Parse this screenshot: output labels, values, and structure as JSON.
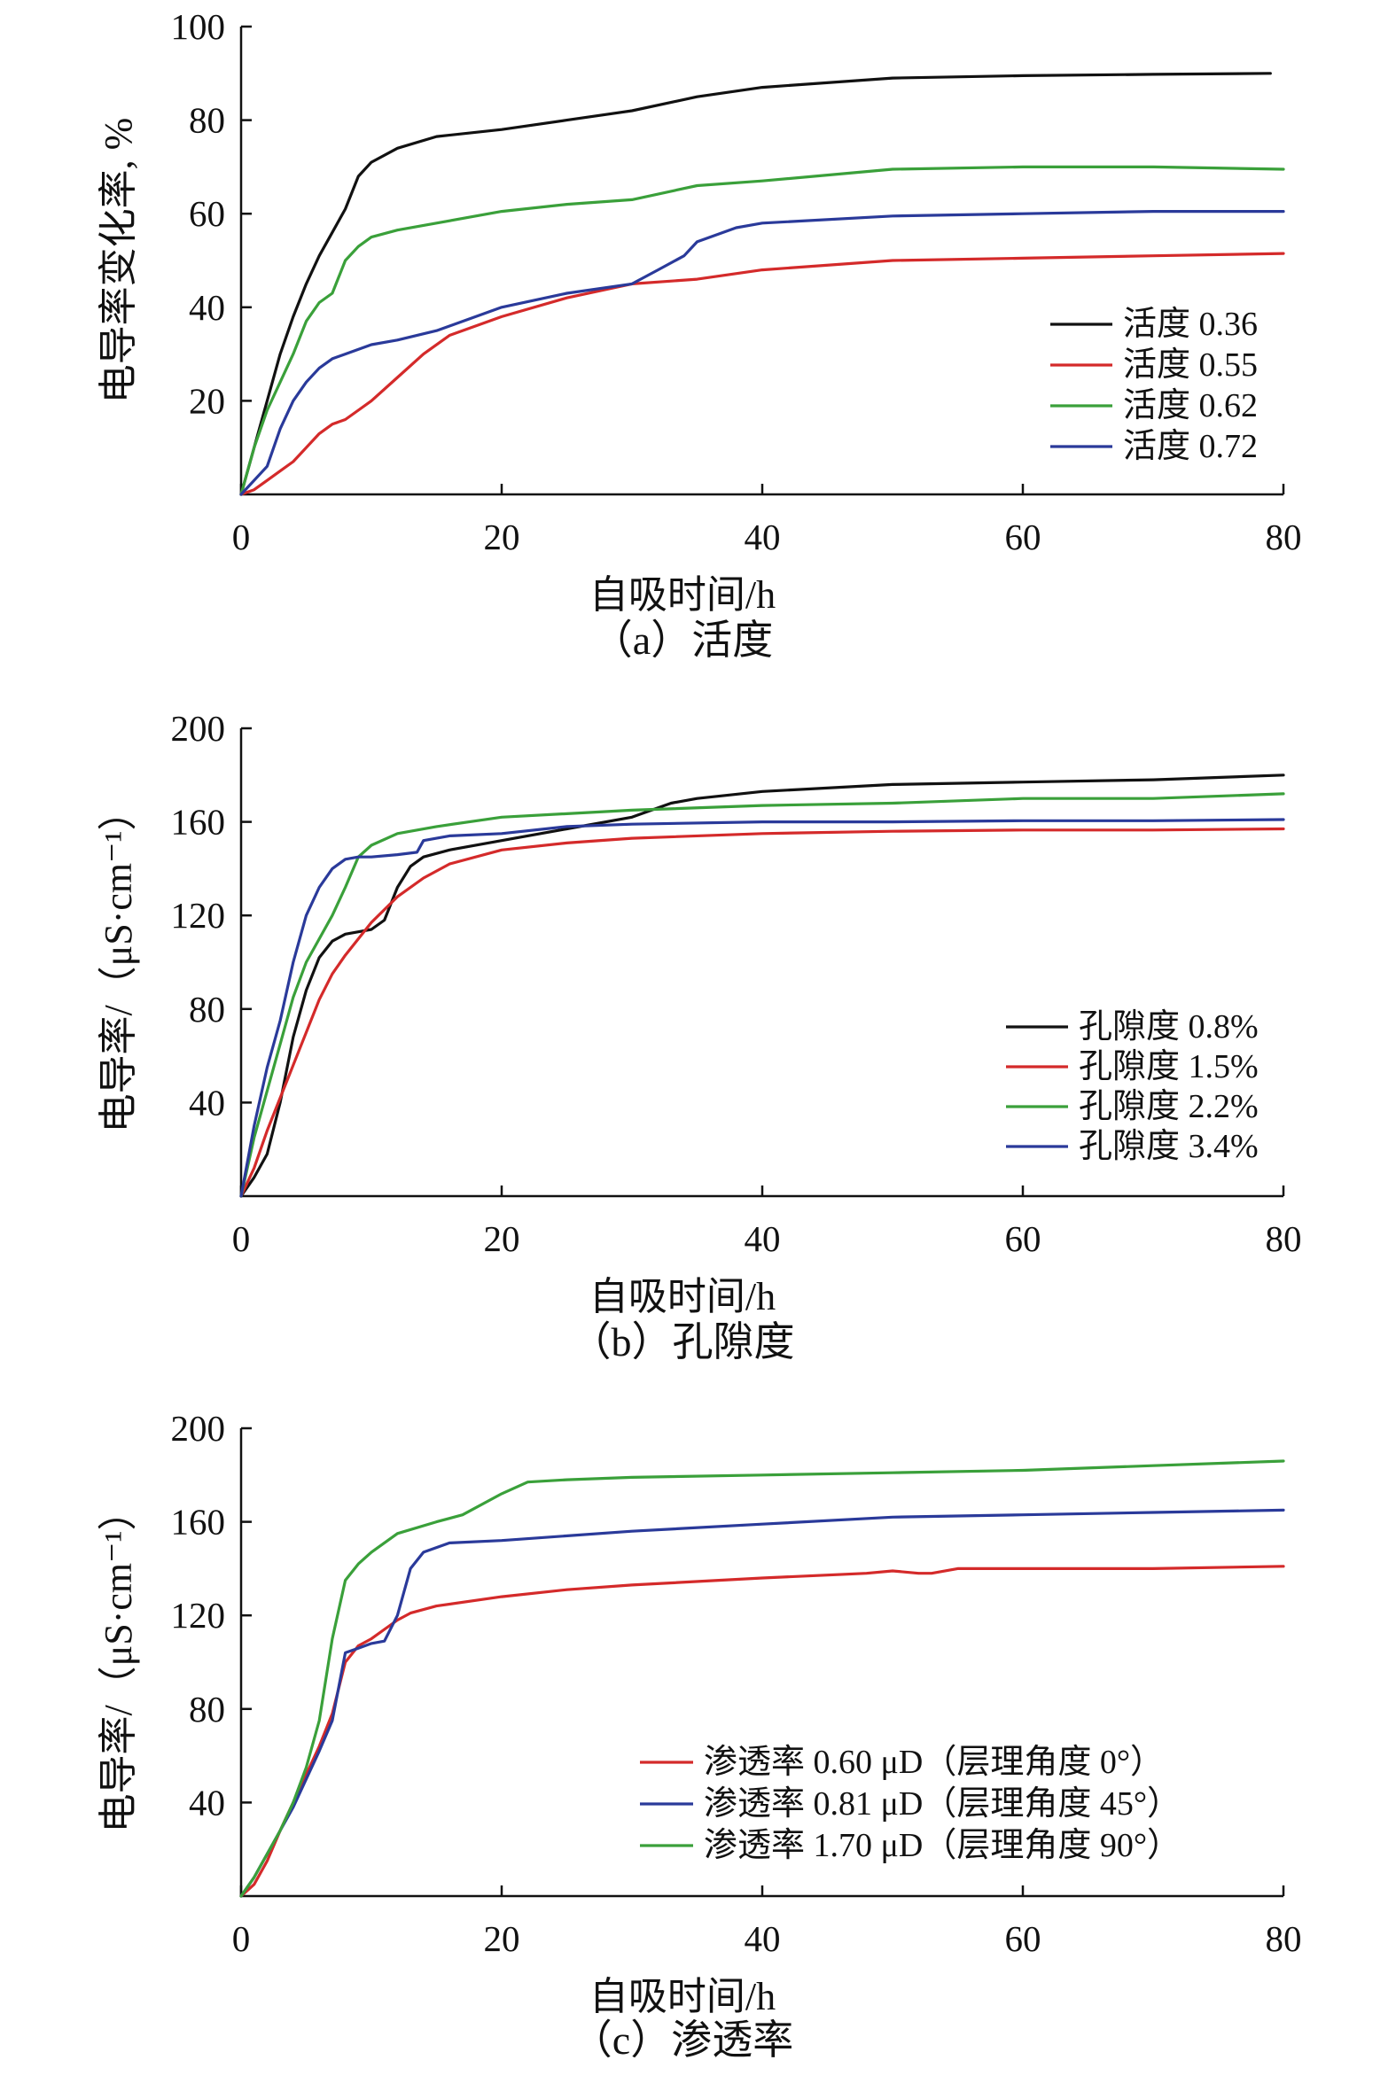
{
  "chart_data": [
    {
      "type": "line",
      "caption": "（a）活度",
      "xlabel": "自吸时间/h",
      "ylabel": "电导率变化率, %",
      "xlim": [
        0,
        80
      ],
      "ylim": [
        0,
        100
      ],
      "xticks": [
        "0",
        "20",
        "40",
        "60",
        "80"
      ],
      "yticks": [
        "20",
        "40",
        "60",
        "80",
        "100"
      ],
      "legend_position": "right",
      "series": [
        {
          "name": "活度 0.36",
          "color": "#111111",
          "x": [
            0,
            1,
            2,
            3,
            4,
            5,
            6,
            7,
            8,
            9,
            10,
            12,
            15,
            20,
            25,
            30,
            35,
            40,
            50,
            60,
            70,
            79
          ],
          "y": [
            0,
            10,
            20,
            30,
            38,
            45,
            51,
            56,
            61,
            68,
            71,
            74,
            76.5,
            78,
            80,
            82,
            85,
            87,
            89,
            89.5,
            89.8,
            90
          ]
        },
        {
          "name": "活度 0.55",
          "color": "#d42a2a",
          "x": [
            0,
            1,
            2,
            3,
            4,
            5,
            6,
            7,
            8,
            9,
            10,
            12,
            14,
            16,
            20,
            25,
            30,
            35,
            40,
            50,
            60,
            70,
            80
          ],
          "y": [
            0,
            1,
            3,
            5,
            7,
            10,
            13,
            15,
            16,
            18,
            20,
            25,
            30,
            34,
            38,
            42,
            45,
            46,
            48,
            50,
            50.5,
            51,
            51.5
          ]
        },
        {
          "name": "活度 0.62",
          "color": "#3aa03a",
          "x": [
            0,
            1,
            2,
            3,
            4,
            5,
            6,
            7,
            8,
            9,
            10,
            12,
            15,
            20,
            25,
            30,
            35,
            40,
            50,
            60,
            70,
            80
          ],
          "y": [
            0,
            10,
            18,
            24,
            30,
            37,
            41,
            43,
            50,
            53,
            55,
            56.5,
            58,
            60.5,
            62,
            63,
            66,
            67,
            69.5,
            70,
            70,
            69.5
          ]
        },
        {
          "name": "活度 0.72",
          "color": "#2a3a9a",
          "x": [
            0,
            1,
            2,
            3,
            4,
            5,
            6,
            7,
            8,
            10,
            12,
            15,
            18,
            20,
            25,
            30,
            32,
            34,
            35,
            38,
            40,
            50,
            60,
            70,
            80
          ],
          "y": [
            0,
            3,
            6,
            14,
            20,
            24,
            27,
            29,
            30,
            32,
            33,
            35,
            38,
            40,
            43,
            45,
            48,
            51,
            54,
            57,
            58,
            59.5,
            60,
            60.5,
            60.5
          ]
        }
      ]
    },
    {
      "type": "line",
      "caption": "（b）孔隙度",
      "xlabel": "自吸时间/h",
      "ylabel": "电导率/（μS·cm⁻¹）",
      "xlim": [
        0,
        80
      ],
      "ylim": [
        0,
        200
      ],
      "xticks": [
        "0",
        "20",
        "40",
        "60",
        "80"
      ],
      "yticks": [
        "40",
        "80",
        "120",
        "160",
        "200"
      ],
      "legend_position": "right",
      "series": [
        {
          "name": "孔隙度 0.8%",
          "color": "#111111",
          "x": [
            0,
            1,
            2,
            3,
            4,
            5,
            6,
            7,
            8,
            9,
            10,
            11,
            12,
            13,
            14,
            16,
            20,
            25,
            30,
            33,
            35,
            40,
            50,
            60,
            70,
            80
          ],
          "y": [
            0,
            8,
            18,
            40,
            68,
            88,
            102,
            109,
            112,
            113,
            114,
            118,
            132,
            141,
            145,
            148,
            152,
            157,
            162,
            168,
            170,
            173,
            176,
            177,
            178,
            180
          ]
        },
        {
          "name": "孔隙度 1.5%",
          "color": "#d42a2a",
          "x": [
            0,
            1,
            2,
            3,
            4,
            5,
            6,
            7,
            8,
            9,
            10,
            12,
            14,
            16,
            20,
            25,
            30,
            40,
            50,
            60,
            70,
            80
          ],
          "y": [
            0,
            12,
            28,
            42,
            56,
            70,
            84,
            95,
            103,
            110,
            117,
            128,
            136,
            142,
            148,
            151,
            153,
            155,
            156,
            156.5,
            156.5,
            157
          ]
        },
        {
          "name": "孔隙度 2.2%",
          "color": "#3aa03a",
          "x": [
            0,
            1,
            2,
            3,
            4,
            5,
            6,
            7,
            8,
            9,
            10,
            12,
            15,
            20,
            30,
            40,
            50,
            60,
            70,
            80
          ],
          "y": [
            0,
            25,
            45,
            65,
            85,
            100,
            110,
            120,
            132,
            145,
            150,
            155,
            158,
            162,
            165,
            167,
            168,
            170,
            170,
            172
          ]
        },
        {
          "name": "孔隙度 3.4%",
          "color": "#2a3a9a",
          "x": [
            0,
            1,
            2,
            3,
            4,
            5,
            6,
            7,
            8,
            9,
            10,
            12,
            13.5,
            14,
            16,
            20,
            25,
            30,
            40,
            50,
            60,
            70,
            80
          ],
          "y": [
            0,
            30,
            55,
            75,
            100,
            120,
            132,
            140,
            144,
            145,
            145,
            146,
            147,
            152,
            154,
            155,
            158,
            159,
            160,
            160,
            160.5,
            160.5,
            161
          ]
        }
      ]
    },
    {
      "type": "line",
      "caption": "（c）渗透率",
      "xlabel": "自吸时间/h",
      "ylabel": "电导率/（μS·cm⁻¹）",
      "xlim": [
        0,
        80
      ],
      "ylim": [
        0,
        200
      ],
      "xticks": [
        "0",
        "20",
        "40",
        "60",
        "80"
      ],
      "yticks": [
        "40",
        "80",
        "120",
        "160",
        "200"
      ],
      "legend_position": "bottom-right",
      "series": [
        {
          "name": "渗透率 0.60 μD（层理角度 0°）",
          "color": "#d42a2a",
          "x": [
            0,
            1,
            2,
            3,
            4,
            5,
            6,
            7,
            8,
            9,
            10,
            11,
            12,
            13,
            15,
            20,
            25,
            30,
            40,
            48,
            50,
            52,
            53,
            55,
            60,
            70,
            80
          ],
          "y": [
            0,
            5,
            15,
            28,
            40,
            52,
            64,
            78,
            100,
            107,
            110,
            114,
            118,
            121,
            124,
            128,
            131,
            133,
            136,
            138,
            139,
            138,
            138,
            140,
            140,
            140,
            141
          ]
        },
        {
          "name": "渗透率 0.81 μD（层理角度 45°）",
          "color": "#2a3a9a",
          "x": [
            0,
            1,
            2,
            3,
            4,
            5,
            6,
            7,
            8,
            9,
            10,
            11,
            12,
            13,
            14,
            16,
            20,
            30,
            40,
            50,
            60,
            70,
            80
          ],
          "y": [
            0,
            8,
            18,
            28,
            38,
            50,
            62,
            75,
            104,
            106,
            108,
            109,
            120,
            140,
            147,
            151,
            152,
            156,
            159,
            162,
            163,
            164,
            165
          ]
        },
        {
          "name": "渗透率 1.70 μD（层理角度 90°）",
          "color": "#3aa03a",
          "x": [
            0,
            1,
            2,
            3,
            4,
            5,
            6,
            7,
            8,
            9,
            10,
            12,
            15,
            17,
            20,
            22,
            25,
            30,
            40,
            50,
            60,
            70,
            80
          ],
          "y": [
            0,
            8,
            18,
            28,
            40,
            55,
            75,
            110,
            135,
            142,
            147,
            155,
            160,
            163,
            172,
            177,
            178,
            179,
            180,
            181,
            182,
            184,
            186
          ]
        }
      ]
    }
  ]
}
